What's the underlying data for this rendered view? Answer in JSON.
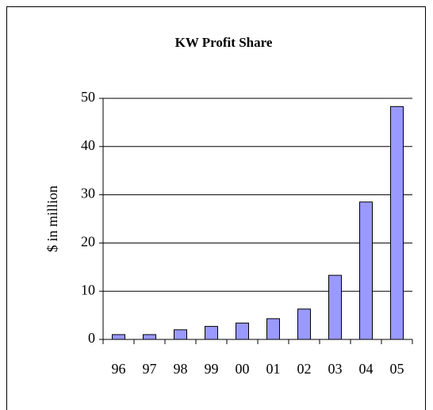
{
  "chart_data": {
    "type": "bar",
    "title": "KW Profit Share",
    "ylabel": "$ in million",
    "categories": [
      "96",
      "97",
      "98",
      "99",
      "00",
      "01",
      "02",
      "03",
      "04",
      "05"
    ],
    "values": [
      1,
      1,
      2,
      2.7,
      3.4,
      4.3,
      6.3,
      13.3,
      28.5,
      48.3
    ],
    "color": "#9999ff",
    "ylim": [
      0,
      50
    ],
    "yticks": [
      0,
      10,
      20,
      30,
      40,
      50
    ],
    "grid": true
  }
}
